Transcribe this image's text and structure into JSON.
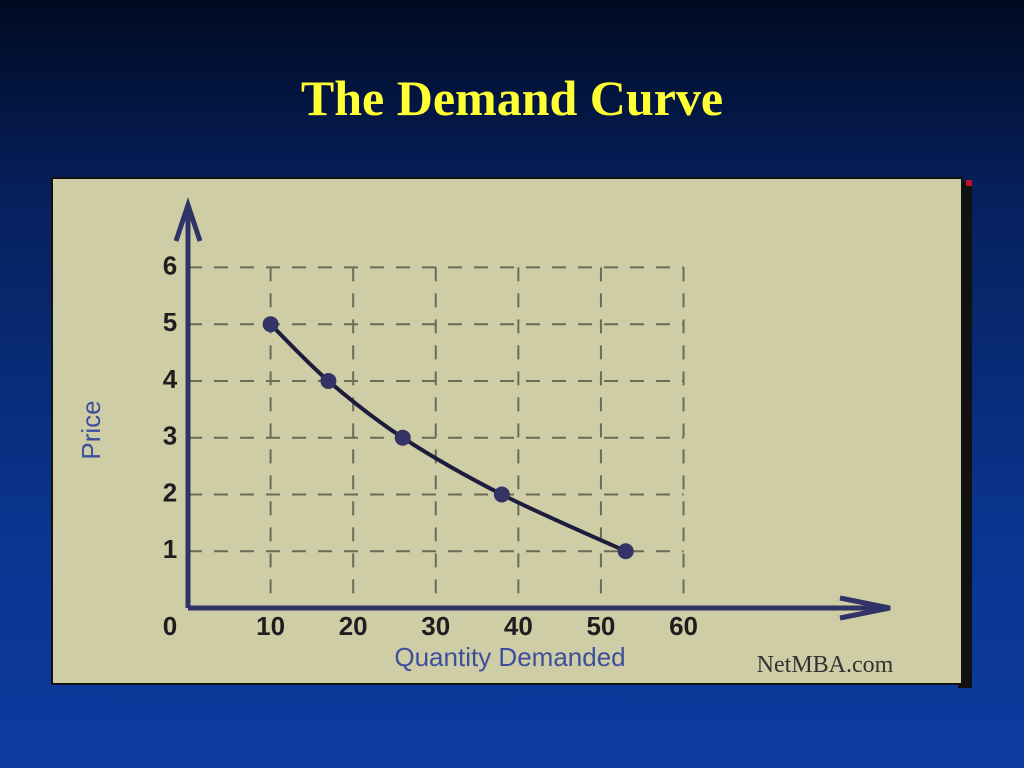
{
  "chart_data": {
    "type": "line",
    "title": "The Demand Curve",
    "x_label": "Quantity Demanded",
    "y_label": "Price",
    "annotations": [
      "NetMBA.com"
    ],
    "x": [
      10,
      17,
      26,
      38,
      53
    ],
    "series": [
      {
        "name": "Demand",
        "color": "#1c1c3c",
        "values": [
          5,
          4,
          3,
          2,
          1
        ]
      }
    ],
    "xlim": [
      0,
      85
    ],
    "ylim": [
      0,
      7.1
    ],
    "xticks": [
      10,
      20,
      30,
      40,
      50,
      60
    ],
    "yticks": [
      0,
      1,
      2,
      3,
      4,
      5,
      6
    ],
    "grid": true,
    "axis_color": "#303366",
    "grid_color": "#6b6b5a"
  }
}
